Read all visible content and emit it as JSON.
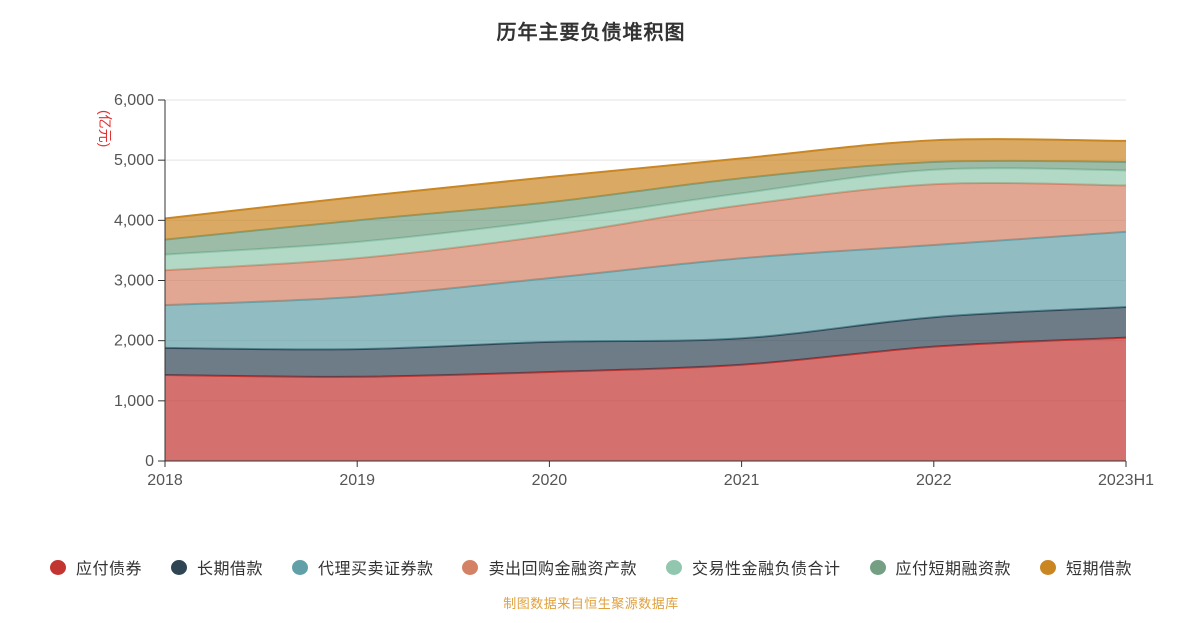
{
  "chart_data": {
    "type": "area",
    "stacked": true,
    "smooth": true,
    "title": "历年主要负债堆积图",
    "y_unit_label": "(亿元)",
    "categories": [
      "2018",
      "2019",
      "2020",
      "2021",
      "2022",
      "2023H1"
    ],
    "series": [
      {
        "name": "应付债券",
        "color": "#c23531",
        "values": [
          1430,
          1400,
          1480,
          1600,
          1900,
          2050
        ]
      },
      {
        "name": "长期借款",
        "color": "#2f4554",
        "values": [
          450,
          460,
          500,
          440,
          490,
          510
        ]
      },
      {
        "name": "代理买卖证券款",
        "color": "#61a0a8",
        "values": [
          710,
          870,
          1060,
          1330,
          1200,
          1250
        ]
      },
      {
        "name": "卖出回购金融资产款",
        "color": "#d48265",
        "values": [
          580,
          640,
          710,
          880,
          1010,
          770
        ]
      },
      {
        "name": "交易性金融负债合计",
        "color": "#91c7ae",
        "values": [
          260,
          270,
          250,
          200,
          240,
          250
        ]
      },
      {
        "name": "应付短期融资款",
        "color": "#749f83",
        "values": [
          250,
          360,
          300,
          250,
          130,
          140
        ]
      },
      {
        "name": "短期借款",
        "color": "#ca8622",
        "values": [
          350,
          390,
          420,
          330,
          360,
          350
        ]
      }
    ],
    "ylim": [
      0,
      6000
    ],
    "y_interval": 1000,
    "y_tick_labels": [
      "0",
      "1,000",
      "2,000",
      "3,000",
      "4,000",
      "5,000",
      "6,000"
    ],
    "grid": true,
    "legend_position": "bottom",
    "fill_opacity": 0.7,
    "axis_color": "#333333",
    "gridline_color": "#e3e3e3",
    "tick_label_color": "#555555",
    "unit_label_color": "#e03232"
  },
  "footer": {
    "source_note": "制图数据来自恒生聚源数据库"
  }
}
